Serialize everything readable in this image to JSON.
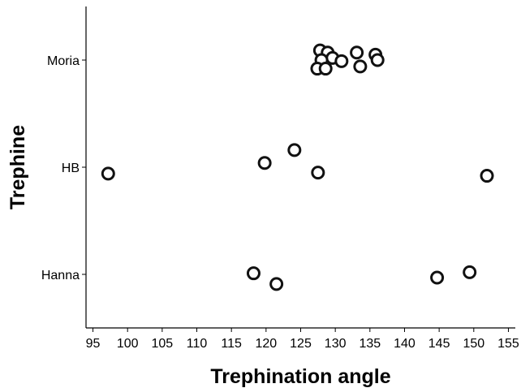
{
  "chart_data": {
    "type": "scatter",
    "title": "",
    "xlabel": "Trephination angle",
    "ylabel": "Trephine",
    "xlim": [
      94,
      156
    ],
    "xticks": [
      95,
      100,
      105,
      110,
      115,
      120,
      125,
      130,
      135,
      140,
      145,
      150,
      155
    ],
    "categories": [
      "Moria",
      "HB",
      "Hanna"
    ],
    "grid": false,
    "legend": "none",
    "marker": "open-circle",
    "series": [
      {
        "category": "Moria",
        "points": [
          {
            "x": 127.8,
            "j": 0.09
          },
          {
            "x": 128.9,
            "j": 0.07
          },
          {
            "x": 129.6,
            "j": 0.02
          },
          {
            "x": 130.9,
            "j": -0.01
          },
          {
            "x": 128.0,
            "j": 0.0
          },
          {
            "x": 127.4,
            "j": -0.08
          },
          {
            "x": 128.6,
            "j": -0.08
          },
          {
            "x": 133.1,
            "j": 0.07
          },
          {
            "x": 133.6,
            "j": -0.06
          },
          {
            "x": 135.8,
            "j": 0.05
          },
          {
            "x": 136.1,
            "j": 0.0
          }
        ]
      },
      {
        "category": "HB",
        "points": [
          {
            "x": 97.2,
            "j": -0.06
          },
          {
            "x": 119.8,
            "j": 0.04
          },
          {
            "x": 124.1,
            "j": 0.16
          },
          {
            "x": 127.5,
            "j": -0.05
          },
          {
            "x": 151.9,
            "j": -0.08
          }
        ]
      },
      {
        "category": "Hanna",
        "points": [
          {
            "x": 118.2,
            "j": 0.01
          },
          {
            "x": 121.5,
            "j": -0.09
          },
          {
            "x": 144.7,
            "j": -0.03
          },
          {
            "x": 149.4,
            "j": 0.02
          }
        ]
      }
    ]
  }
}
